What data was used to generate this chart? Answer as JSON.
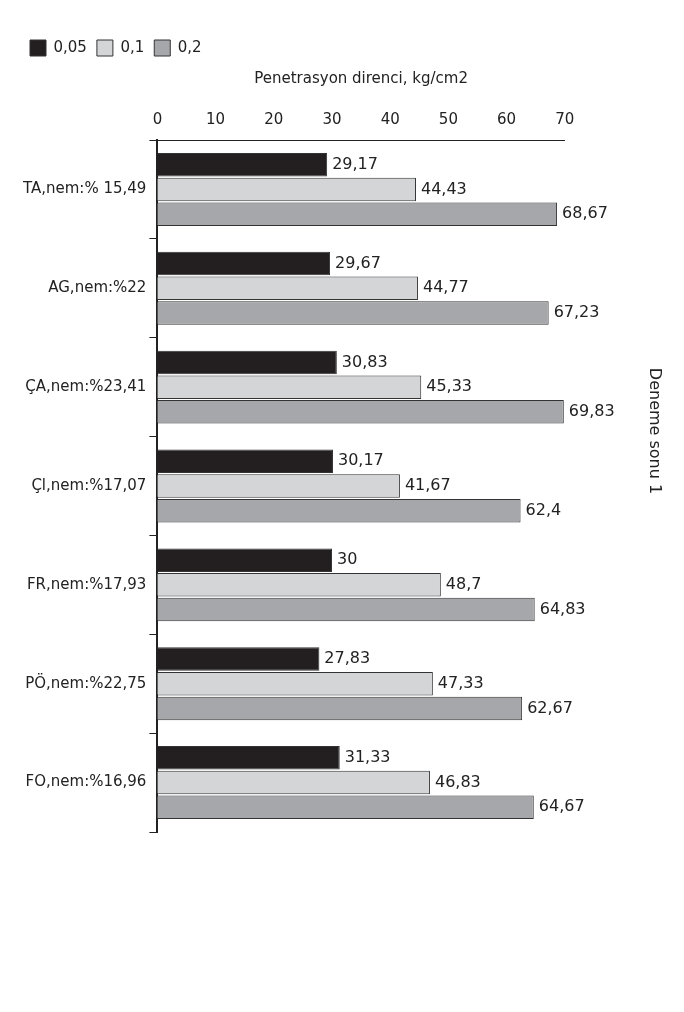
{
  "chart_data": {
    "type": "bar",
    "orientation": "horizontal",
    "title": "Deneme sonu 1",
    "xlabel": "Penetrasyon direnci, kg/cm2",
    "categories": [
      "TA,nem:% 15,49",
      "AG,nem:%22",
      "ÇA,nem:%23,41",
      "Çl,nem:%17,07",
      "FR,nem:%17,93",
      "PÖ,nem:%22,75",
      "FO,nem:%16,96"
    ],
    "series": [
      {
        "name": "0,05",
        "color": "#231f20",
        "values": [
          29.17,
          29.67,
          30.83,
          30.17,
          30,
          27.83,
          31.33
        ],
        "value_labels": [
          "29,17",
          "29,67",
          "30,83",
          "30,17",
          "30",
          "27,83",
          "31,33"
        ]
      },
      {
        "name": "0,1",
        "color": "#d4d5d7",
        "values": [
          44.43,
          44.77,
          45.33,
          41.67,
          48.7,
          47.33,
          46.83
        ],
        "value_labels": [
          "44,43",
          "44,77",
          "45,33",
          "41,67",
          "48,7",
          "47,33",
          "46,83"
        ]
      },
      {
        "name": "0,2",
        "color": "#a6a7aa",
        "values": [
          68.67,
          67.23,
          69.83,
          62.4,
          64.83,
          62.67,
          64.67
        ],
        "value_labels": [
          "68,67",
          "67,23",
          "69,83",
          "62,4",
          "64,83",
          "62,67",
          "64,67"
        ]
      }
    ],
    "xlim": [
      0,
      70
    ],
    "xticks": [
      0,
      10,
      20,
      30,
      40,
      50,
      60,
      70
    ],
    "grid": false,
    "legend": "top left"
  }
}
